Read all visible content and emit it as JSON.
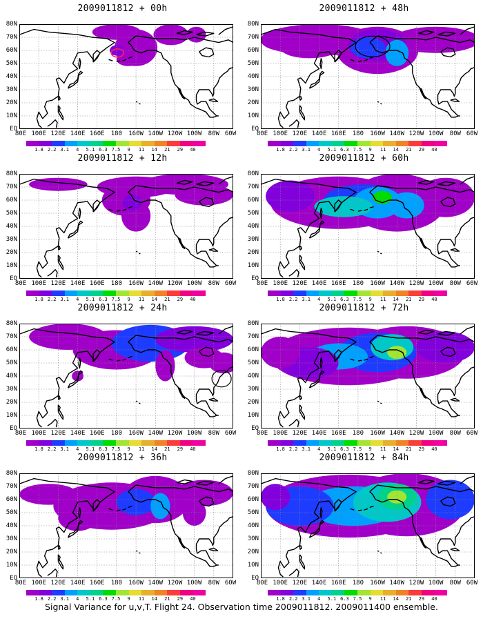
{
  "panels": [
    {
      "title": "2009011812 + 00h"
    },
    {
      "title": "2009011812 + 48h"
    },
    {
      "title": "2009011812 + 12h"
    },
    {
      "title": "2009011812 + 60h"
    },
    {
      "title": "2009011812 + 24h"
    },
    {
      "title": "2009011812 + 72h"
    },
    {
      "title": "2009011812 + 36h"
    },
    {
      "title": "2009011812 + 84h"
    }
  ],
  "lat_labels": [
    "80N",
    "70N",
    "60N",
    "50N",
    "40N",
    "30N",
    "20N",
    "10N",
    "EQ"
  ],
  "lon_labels": [
    "80E",
    "100E",
    "120E",
    "140E",
    "160E",
    "180",
    "160W",
    "140W",
    "120W",
    "100W",
    "80W",
    "60W"
  ],
  "colorbar": {
    "labels": [
      "1.8",
      "2.2",
      "3.1",
      "4",
      "5.1",
      "6.3",
      "7.5",
      "9",
      "11",
      "14",
      "21",
      "29",
      "40"
    ],
    "colors": [
      "#a000c8",
      "#8200dc",
      "#1e3cff",
      "#00a0ff",
      "#00c8c8",
      "#00d28c",
      "#00dc00",
      "#a0e632",
      "#e6dc32",
      "#e6af2d",
      "#f08228",
      "#fa3c3c",
      "#f00082"
    ]
  },
  "footer": "Signal Variance for u,v,T. Flight 24. Observation time 2009011812. 2009011400 ensemble."
}
